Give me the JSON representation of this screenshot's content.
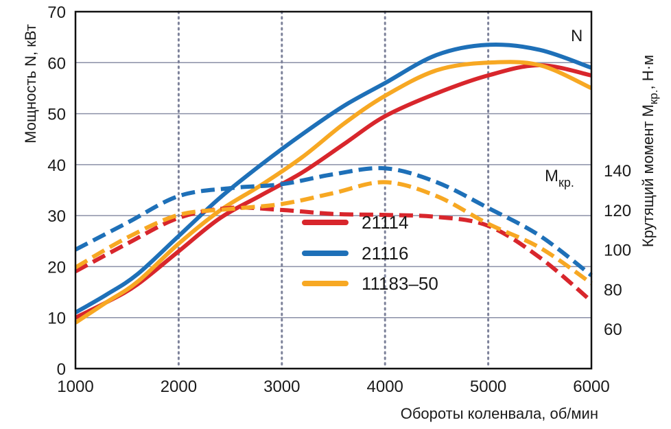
{
  "chart_data": {
    "type": "line",
    "title": "",
    "xlabel": "Обороты коленвала, об/мин",
    "ylabel_left": "Мощность N, кВт",
    "ylabel_right": "Крутящий момент Мкр., Н·м",
    "ylabel_right_parts": {
      "main": "Крутящий момент М",
      "sub": "кр.",
      "tail": ", Н·м"
    },
    "xlim": [
      1000,
      6000
    ],
    "ylim_left": [
      0,
      70
    ],
    "ylim_right": [
      40,
      220
    ],
    "x_ticks": [
      1000,
      2000,
      3000,
      4000,
      5000,
      6000
    ],
    "x_tick_labels": [
      "1000",
      "2000",
      "3000",
      "4000",
      "5000",
      "6000"
    ],
    "y_left_ticks": [
      0,
      10,
      20,
      30,
      40,
      50,
      60,
      70
    ],
    "y_left_tick_labels": [
      "0",
      "10",
      "20",
      "30",
      "40",
      "50",
      "60",
      "70"
    ],
    "y_right_ticks": [
      60,
      80,
      100,
      120,
      140
    ],
    "y_right_tick_labels": [
      "60",
      "80",
      "100",
      "120",
      "140"
    ],
    "grid": {
      "horizontal": "solid",
      "vertical": "dotted"
    },
    "annotations": {
      "power": "N",
      "torque_main": "М",
      "torque_sub": "кр."
    },
    "legend": {
      "placement": "center",
      "entries": [
        {
          "label": "21114",
          "color": "#d8262c"
        },
        {
          "label": "21116",
          "color": "#1e70b8"
        },
        {
          "label": "11183–50",
          "color": "#f7a823"
        }
      ]
    },
    "series": [
      {
        "name": "21114",
        "kind": "power",
        "axis": "left",
        "style": "solid",
        "color": "#d8262c",
        "x": [
          1000,
          1300,
          1600,
          2000,
          2400,
          2800,
          3200,
          3600,
          4000,
          4500,
          5000,
          5500,
          6000
        ],
        "y": [
          10,
          13,
          16.5,
          23,
          29.5,
          34,
          38.5,
          44,
          49.5,
          54,
          57.5,
          59.5,
          57.5
        ]
      },
      {
        "name": "21116",
        "kind": "power",
        "axis": "left",
        "style": "solid",
        "color": "#1e70b8",
        "x": [
          1000,
          1300,
          1600,
          2000,
          2400,
          2800,
          3200,
          3600,
          4000,
          4500,
          5000,
          5500,
          6000
        ],
        "y": [
          11,
          14.5,
          18.5,
          26,
          33.5,
          40,
          46,
          51.5,
          56,
          61.5,
          63.5,
          62.5,
          59
        ]
      },
      {
        "name": "11183–50",
        "kind": "power",
        "axis": "left",
        "style": "solid",
        "color": "#f7a823",
        "x": [
          1000,
          1300,
          1600,
          2000,
          2400,
          2800,
          3200,
          3600,
          4000,
          4500,
          5000,
          5500,
          6000
        ],
        "y": [
          9,
          13,
          17,
          24.5,
          31,
          36,
          41.5,
          48,
          53.5,
          58.5,
          60,
          59.5,
          55
        ]
      },
      {
        "name": "21114",
        "kind": "torque",
        "axis": "right",
        "style": "dashed",
        "color": "#d8262c",
        "x": [
          1000,
          1500,
          2000,
          2500,
          3000,
          3500,
          4000,
          4500,
          5000,
          5500,
          6000
        ],
        "y": [
          89,
          103,
          116,
          121,
          120,
          118,
          117.5,
          116.5,
          112,
          96,
          74
        ]
      },
      {
        "name": "21116",
        "kind": "torque",
        "axis": "right",
        "style": "dashed",
        "color": "#1e70b8",
        "x": [
          1000,
          1500,
          2000,
          2500,
          3000,
          3500,
          4000,
          4500,
          5000,
          5500,
          6000
        ],
        "y": [
          100,
          113.5,
          127,
          131,
          133,
          138,
          141,
          134,
          121,
          107,
          87
        ]
      },
      {
        "name": "11183–50",
        "kind": "torque",
        "axis": "right",
        "style": "dashed",
        "color": "#f7a823",
        "x": [
          1000,
          1500,
          2000,
          2500,
          3000,
          3500,
          4000,
          4500,
          5000,
          5500,
          6000
        ],
        "y": [
          91,
          106,
          117.5,
          120.5,
          123,
          128.5,
          134,
          127,
          113,
          101,
          83
        ]
      }
    ]
  }
}
